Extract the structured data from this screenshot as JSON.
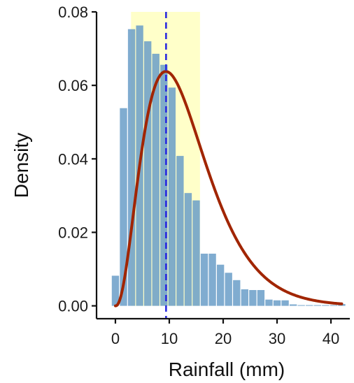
{
  "chart_data": {
    "type": "histogram",
    "xlabel": "Rainfall (mm)",
    "ylabel": "Density",
    "xlim": [
      -3.5,
      43.5
    ],
    "ylim": [
      -0.0035,
      0.08
    ],
    "x_ticks": [
      0,
      10,
      20,
      30,
      40
    ],
    "x_tick_labels": [
      "0",
      "10",
      "20",
      "30",
      "40"
    ],
    "y_ticks": [
      0,
      0.02,
      0.04,
      0.06,
      0.08
    ],
    "y_tick_labels": [
      "0.00",
      "0.02",
      "0.04",
      "0.06",
      "0.08"
    ],
    "grid": false,
    "bar_width": 1.5,
    "bars": [
      {
        "x": 0,
        "density": 0.0082
      },
      {
        "x": 1.5,
        "density": 0.0538
      },
      {
        "x": 3,
        "density": 0.0753
      },
      {
        "x": 4.5,
        "density": 0.0763
      },
      {
        "x": 6,
        "density": 0.072
      },
      {
        "x": 7.5,
        "density": 0.0686
      },
      {
        "x": 9,
        "density": 0.0656
      },
      {
        "x": 10.5,
        "density": 0.0594
      },
      {
        "x": 12,
        "density": 0.0408
      },
      {
        "x": 13.5,
        "density": 0.0307
      },
      {
        "x": 15,
        "density": 0.0287
      },
      {
        "x": 16.5,
        "density": 0.0142
      },
      {
        "x": 18,
        "density": 0.0142
      },
      {
        "x": 19.5,
        "density": 0.0112
      },
      {
        "x": 21,
        "density": 0.009
      },
      {
        "x": 22.5,
        "density": 0.007
      },
      {
        "x": 24,
        "density": 0.0045
      },
      {
        "x": 25.5,
        "density": 0.0043
      },
      {
        "x": 27,
        "density": 0.0043
      },
      {
        "x": 28.5,
        "density": 0.0017
      },
      {
        "x": 30,
        "density": 0.0015
      },
      {
        "x": 31.5,
        "density": 0.0015
      },
      {
        "x": 33,
        "density": 0.0004
      },
      {
        "x": 34.5,
        "density": 0.0002
      },
      {
        "x": 36,
        "density": 0.0002
      },
      {
        "x": 37.5,
        "density": 0.0002
      },
      {
        "x": 39,
        "density": 0.0002
      },
      {
        "x": 40.5,
        "density": 0.0002
      },
      {
        "x": 42,
        "density": 0.0005
      }
    ],
    "highlight_band": {
      "x_start": 2.9,
      "x_end": 15.7,
      "y_end": 0.08
    },
    "reference_line": {
      "x": 9.4,
      "style": "dashed"
    },
    "density_curve": {
      "type": "gamma",
      "shape": 3.4,
      "scale": 3.9,
      "x_start": 0,
      "x_end": 42
    }
  },
  "colors": {
    "bar": "#6a9dc8",
    "bar_opacity": 0.85,
    "band": "#ffffc0",
    "band_opacity": 0.85,
    "curve": "#a12500",
    "reference_line": "#2a2ae0",
    "axis": "#111111"
  }
}
